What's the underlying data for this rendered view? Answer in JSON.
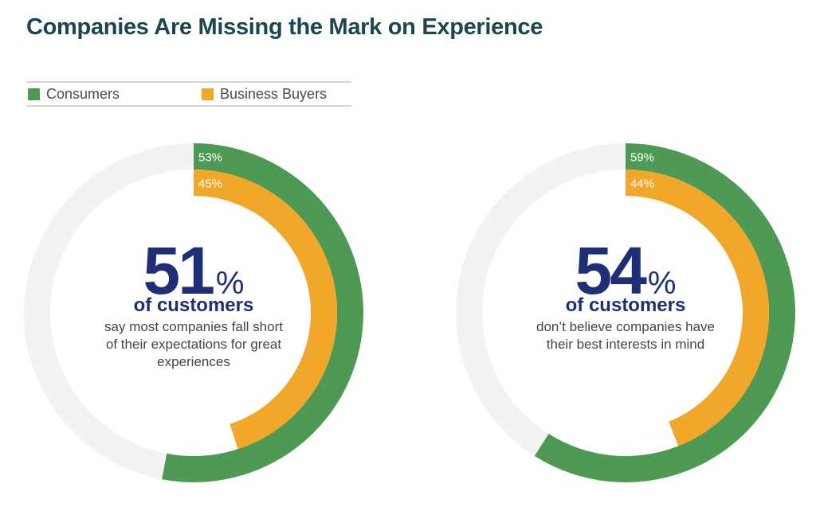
{
  "title": "Companies Are Missing the Mark on Experience",
  "legend": [
    {
      "label": "Consumers",
      "color": "#4e9a55"
    },
    {
      "label": "Business Buyers",
      "color": "#f1a72a"
    }
  ],
  "colors": {
    "track": "#f3f3f3",
    "accent": "#1e2f78"
  },
  "chart_data": [
    {
      "type": "pie",
      "series": [
        {
          "name": "Consumers",
          "value": 53,
          "label": "53%"
        },
        {
          "name": "Business Buyers",
          "value": 45,
          "label": "45%"
        }
      ],
      "headline": {
        "value": "51",
        "unit": "%"
      },
      "subhead": "of customers",
      "description": "say most companies fall short of their expectations for great experiences"
    },
    {
      "type": "pie",
      "series": [
        {
          "name": "Consumers",
          "value": 59,
          "label": "59%"
        },
        {
          "name": "Business Buyers",
          "value": 44,
          "label": "44%"
        }
      ],
      "headline": {
        "value": "54",
        "unit": "%"
      },
      "subhead": "of customers",
      "description": "don’t believe companies have their best interests in mind"
    }
  ]
}
